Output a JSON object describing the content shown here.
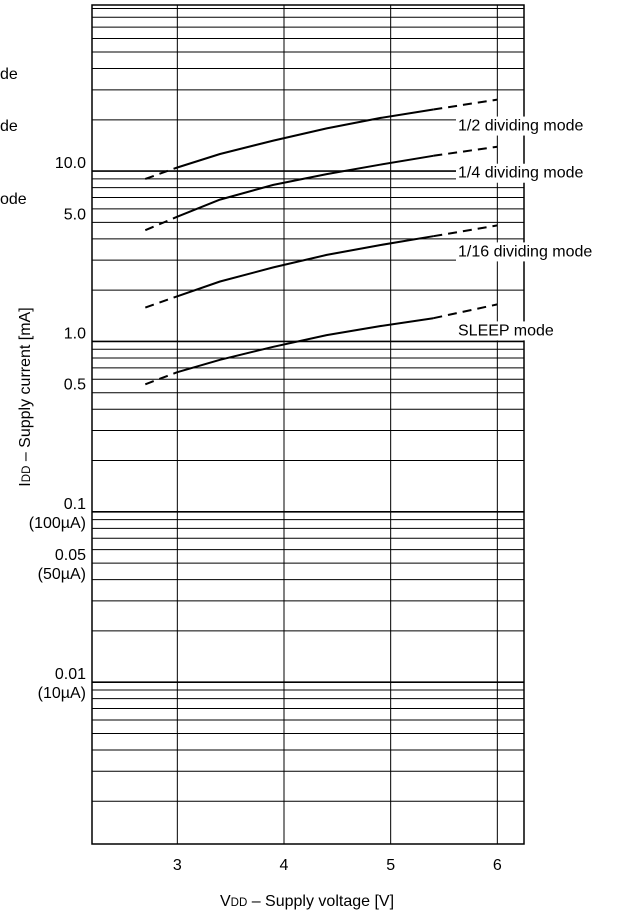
{
  "chart_data": {
    "type": "line",
    "title": "",
    "xlabel": {
      "main": "V",
      "sub": "DD",
      "rest": " – Supply voltage [V]"
    },
    "ylabel": {
      "main": "I",
      "sub": "DD",
      "rest": " – Supply current [mA]"
    },
    "xlim": [
      2.2,
      6.25
    ],
    "ylim_log10": [
      -2.95,
      1.975
    ],
    "y_scale": "log",
    "grid": true,
    "x_ticks": [
      3,
      4,
      5,
      6
    ],
    "x_tick_labels": [
      "3",
      "4",
      "5",
      "6"
    ],
    "y_ticks": [
      {
        "value": 10.0,
        "lines": [
          "10.0"
        ]
      },
      {
        "value": 5.0,
        "lines": [
          "5.0"
        ]
      },
      {
        "value": 1.0,
        "lines": [
          "1.0"
        ]
      },
      {
        "value": 0.5,
        "lines": [
          "0.5"
        ]
      },
      {
        "value": 0.1,
        "lines": [
          "0.1",
          "(100µA)"
        ]
      },
      {
        "value": 0.05,
        "lines": [
          "0.05",
          "(50µA)"
        ]
      },
      {
        "value": 0.01,
        "lines": [
          "0.01",
          "(10µA)"
        ]
      }
    ],
    "series": [
      {
        "name": "1/2 dividing mode",
        "solid": {
          "x": [
            3.0,
            3.4,
            3.9,
            4.4,
            4.9,
            5.4
          ],
          "y": [
            10.5,
            12.6,
            15.1,
            17.8,
            20.5,
            23.0
          ]
        },
        "dashed_low": {
          "x": [
            2.7,
            3.0
          ],
          "y": [
            9.0,
            10.5
          ]
        },
        "dashed_high": {
          "x": [
            5.4,
            6.0
          ],
          "y": [
            23.0,
            26.3
          ]
        }
      },
      {
        "name": "1/4 dividing mode",
        "solid": {
          "x": [
            3.0,
            3.4,
            3.9,
            4.4,
            4.9,
            5.4
          ],
          "y": [
            5.4,
            6.8,
            8.3,
            9.6,
            10.9,
            12.3
          ]
        },
        "dashed_low": {
          "x": [
            2.7,
            3.0
          ],
          "y": [
            4.5,
            5.4
          ]
        },
        "dashed_high": {
          "x": [
            5.4,
            6.0
          ],
          "y": [
            12.3,
            13.9
          ]
        }
      },
      {
        "name": "1/16 dividing mode",
        "solid": {
          "x": [
            3.0,
            3.4,
            3.9,
            4.4,
            4.9,
            5.4
          ],
          "y": [
            1.84,
            2.25,
            2.72,
            3.22,
            3.68,
            4.15
          ]
        },
        "dashed_low": {
          "x": [
            2.7,
            3.0
          ],
          "y": [
            1.58,
            1.84
          ]
        },
        "dashed_high": {
          "x": [
            5.4,
            6.0
          ],
          "y": [
            4.15,
            4.8
          ]
        }
      },
      {
        "name": "SLEEP mode",
        "solid": {
          "x": [
            3.0,
            3.4,
            3.9,
            4.4,
            4.9,
            5.4
          ],
          "y": [
            0.66,
            0.78,
            0.93,
            1.09,
            1.23,
            1.37
          ]
        },
        "dashed_low": {
          "x": [
            2.7,
            3.0
          ],
          "y": [
            0.56,
            0.66
          ]
        },
        "dashed_high": {
          "x": [
            5.4,
            6.0
          ],
          "y": [
            1.37,
            1.65
          ]
        }
      }
    ]
  },
  "cut_labels": [
    "de",
    "de",
    "ode"
  ],
  "colors": {
    "line": "#000000",
    "grid": "#000000",
    "background": "#ffffff"
  }
}
